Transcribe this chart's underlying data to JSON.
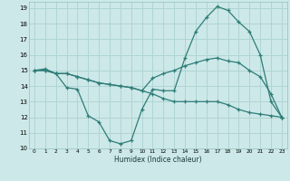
{
  "xlabel": "Humidex (Indice chaleur)",
  "bg_color": "#cde8e8",
  "grid_color": "#b0d4d4",
  "line_color": "#2d7d78",
  "xlim": [
    -0.5,
    23.5
  ],
  "ylim": [
    10,
    19.4
  ],
  "xticks": [
    0,
    1,
    2,
    3,
    4,
    5,
    6,
    7,
    8,
    9,
    10,
    11,
    12,
    13,
    14,
    15,
    16,
    17,
    18,
    19,
    20,
    21,
    22,
    23
  ],
  "yticks": [
    10,
    11,
    12,
    13,
    14,
    15,
    16,
    17,
    18,
    19
  ],
  "line1_x": [
    0,
    1,
    2,
    3,
    4,
    5,
    6,
    7,
    8,
    9,
    10,
    11,
    12,
    13,
    14,
    15,
    16,
    17,
    18,
    19,
    20,
    21,
    22,
    23
  ],
  "line1_y": [
    15.0,
    15.1,
    14.8,
    13.9,
    13.8,
    12.1,
    11.7,
    10.5,
    10.3,
    10.5,
    12.5,
    13.8,
    13.7,
    13.7,
    15.8,
    17.5,
    18.4,
    19.1,
    18.85,
    18.1,
    17.5,
    16.0,
    13.0,
    12.0
  ],
  "line2_x": [
    0,
    1,
    2,
    3,
    4,
    5,
    6,
    7,
    8,
    9,
    10,
    11,
    12,
    13,
    14,
    15,
    16,
    17,
    18,
    19,
    20,
    21,
    22,
    23
  ],
  "line2_y": [
    15.0,
    15.0,
    14.8,
    14.8,
    14.6,
    14.4,
    14.2,
    14.1,
    14.0,
    13.9,
    13.7,
    14.5,
    14.8,
    15.0,
    15.3,
    15.5,
    15.7,
    15.8,
    15.6,
    15.5,
    15.0,
    14.6,
    13.5,
    12.0
  ],
  "line3_x": [
    0,
    1,
    2,
    3,
    4,
    5,
    6,
    7,
    8,
    9,
    10,
    11,
    12,
    13,
    14,
    15,
    16,
    17,
    18,
    19,
    20,
    21,
    22,
    23
  ],
  "line3_y": [
    15.0,
    15.0,
    14.8,
    14.8,
    14.6,
    14.4,
    14.2,
    14.1,
    14.0,
    13.9,
    13.7,
    13.5,
    13.2,
    13.0,
    13.0,
    13.0,
    13.0,
    13.0,
    12.8,
    12.5,
    12.3,
    12.2,
    12.1,
    12.0
  ]
}
